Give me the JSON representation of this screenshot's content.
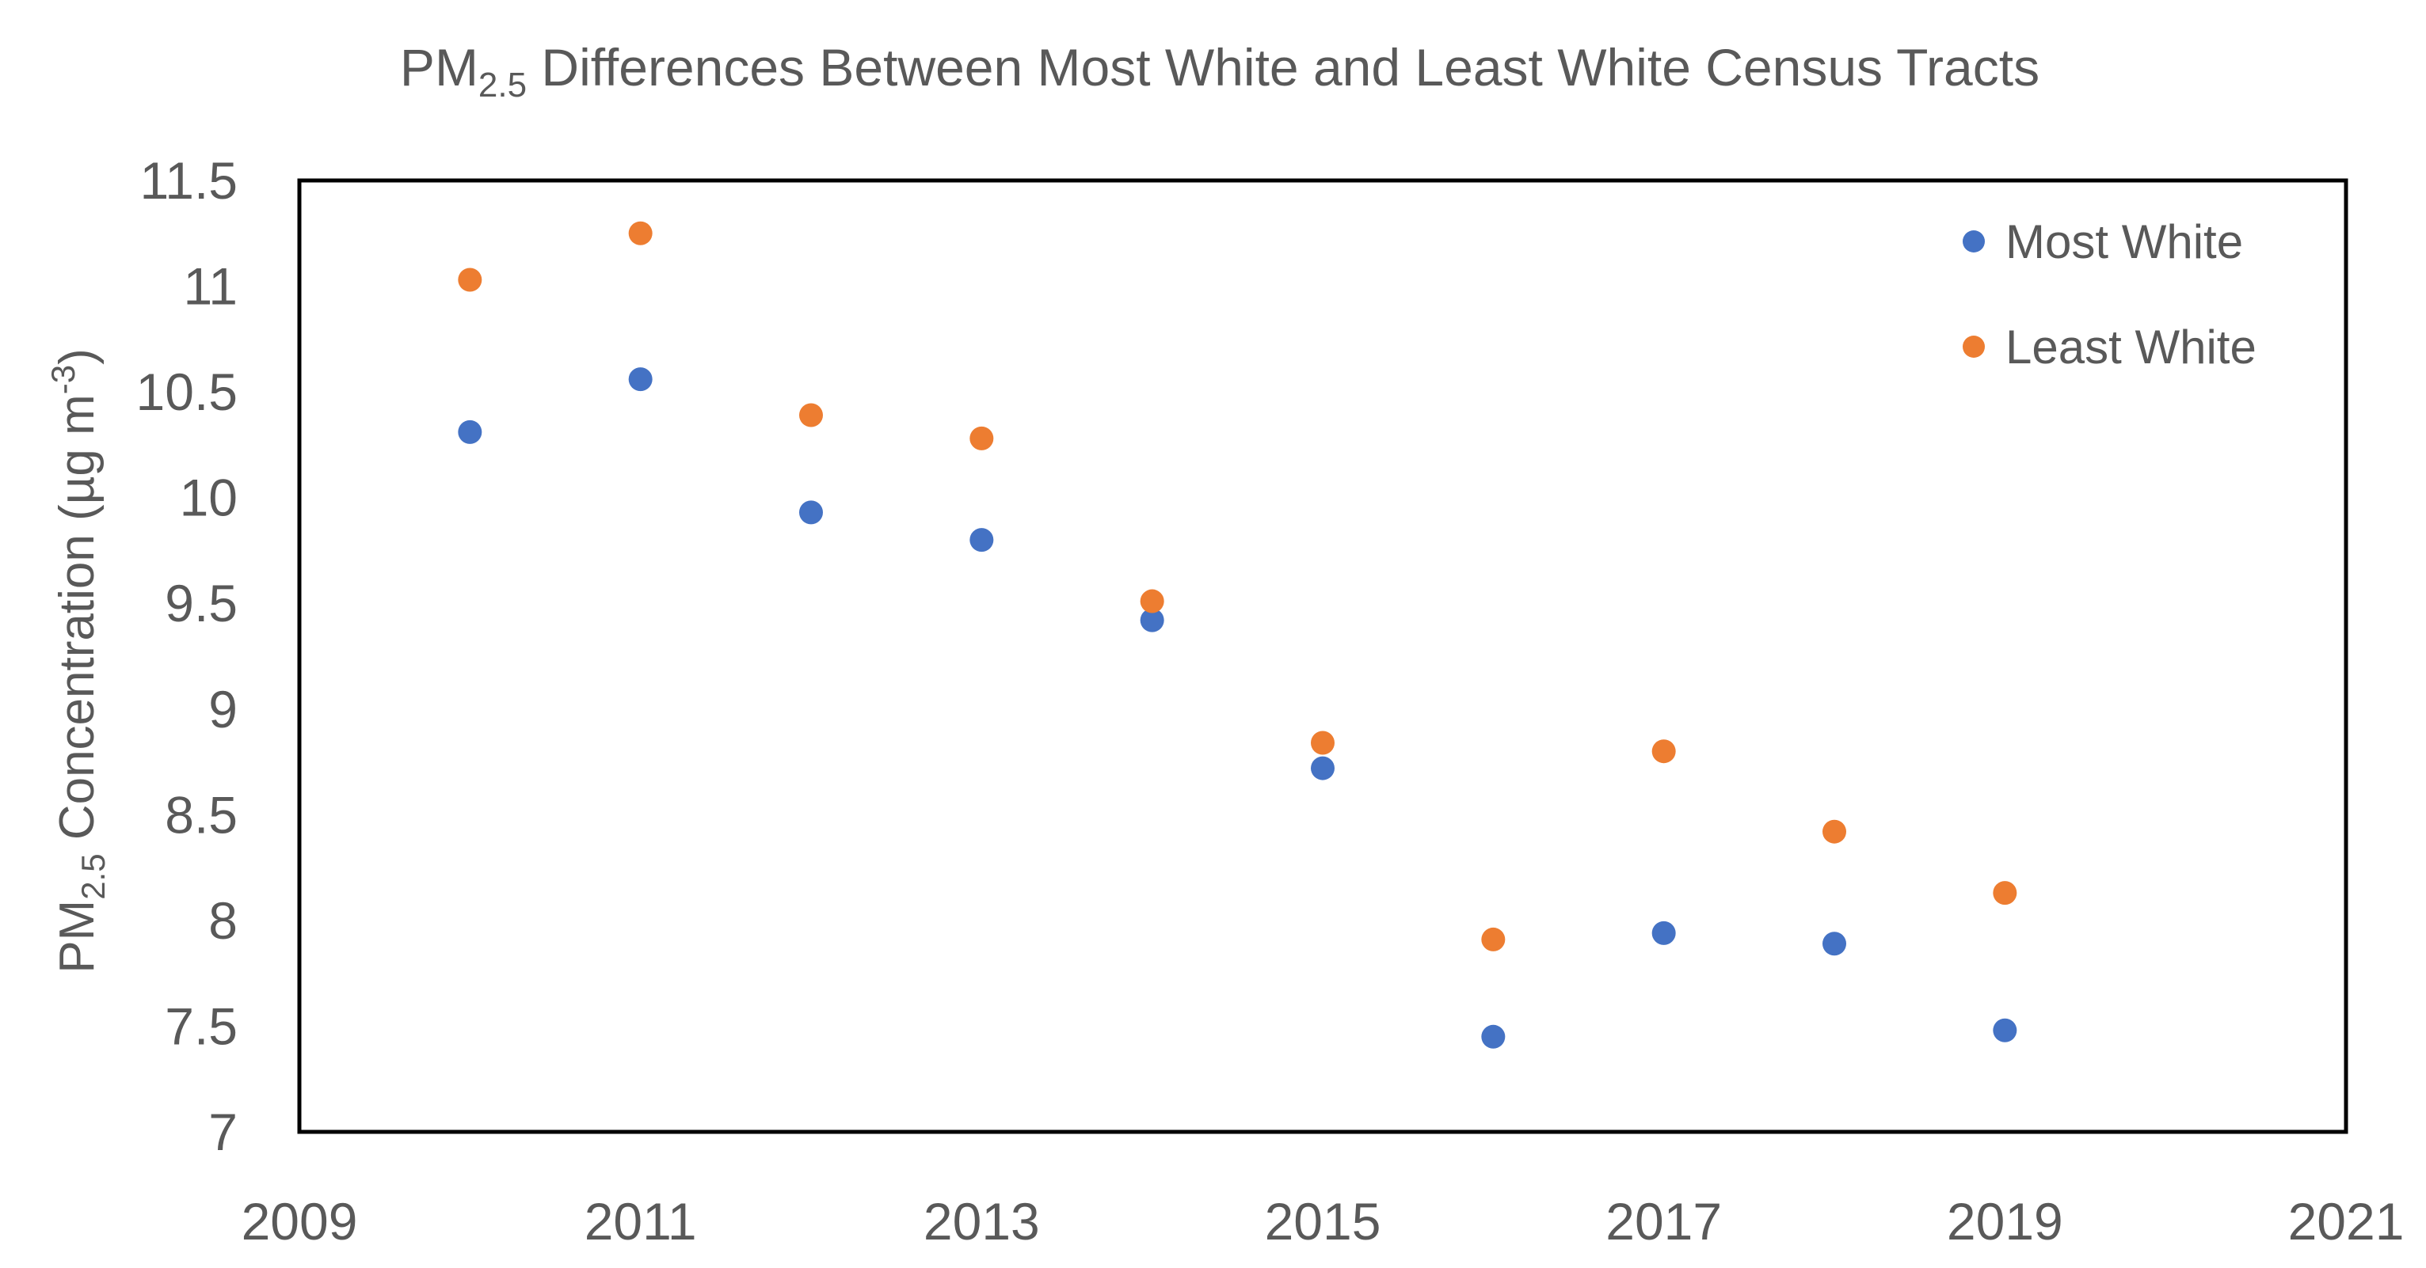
{
  "chart_data": {
    "type": "scatter",
    "title": {
      "prefix": "PM",
      "subscript": "2.5",
      "rest": " Differences Between Most White and Least White Census Tracts"
    },
    "ylabel": {
      "prefix": "PM",
      "subscript": "2.5",
      "middle": " Concentration (µg m",
      "superscript": "-3",
      "suffix": ")"
    },
    "xlabel": "",
    "xlim": [
      2009,
      2021
    ],
    "ylim": [
      7,
      11.5
    ],
    "x_ticks": [
      2009,
      2011,
      2013,
      2015,
      2017,
      2019,
      2021
    ],
    "x_tick_labels": [
      "2009",
      "2011",
      "2013",
      "2015",
      "2017",
      "2019",
      "2021"
    ],
    "y_ticks": [
      7,
      7.5,
      8,
      8.5,
      9,
      9.5,
      10,
      10.5,
      11,
      11.5
    ],
    "y_tick_labels": [
      "7",
      "7.5",
      "8",
      "8.5",
      "9",
      "9.5",
      "10",
      "10.5",
      "11",
      "11.5"
    ],
    "grid": false,
    "legend_position": "top-right",
    "series": [
      {
        "name": "Most White",
        "color": "#4472C4",
        "x": [
          2010,
          2011,
          2012,
          2013,
          2014,
          2015,
          2016,
          2017,
          2018,
          2019
        ],
        "y": [
          10.31,
          10.56,
          9.93,
          9.8,
          9.42,
          8.72,
          7.45,
          7.94,
          7.89,
          7.48
        ]
      },
      {
        "name": "Least White",
        "color": "#ED7D31",
        "x": [
          2010,
          2011,
          2012,
          2013,
          2014,
          2015,
          2016,
          2017,
          2018,
          2019
        ],
        "y": [
          11.03,
          11.25,
          10.39,
          10.28,
          9.51,
          8.84,
          7.91,
          8.8,
          8.42,
          8.13
        ]
      }
    ]
  }
}
